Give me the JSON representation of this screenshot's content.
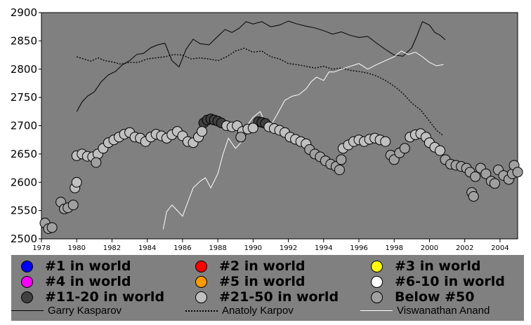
{
  "chart_data": {
    "type": "scatter",
    "title": "",
    "xlabel": "",
    "ylabel": "",
    "xlim": [
      1978,
      2005
    ],
    "ylim": [
      2500,
      2900
    ],
    "xticks": [
      "1978",
      "1980",
      "1982",
      "1984",
      "1986",
      "1988",
      "1990",
      "1992",
      "1994",
      "1996",
      "1998",
      "2000",
      "2002",
      "2004"
    ],
    "yticks": [
      "2500",
      "2550",
      "2600",
      "2650",
      "2700",
      "2750",
      "2800",
      "2850",
      "2900"
    ],
    "grid": false,
    "legend_position": "bottom",
    "plot_background": "#808080",
    "colors": {
      "rank_1": "#0000ff",
      "rank_2": "#ff0000",
      "rank_3": "#ffff00",
      "rank_4": "#ff00ff",
      "rank_5": "#ff9900",
      "rank_6_10": "#ffffff",
      "rank_11_20": "#404040",
      "rank_21_50": "#c0c0c0",
      "below_50": "#a0a0a0"
    },
    "legend": {
      "markers": [
        {
          "label": "#1 in world",
          "color_key": "rank_1"
        },
        {
          "label": "#2 in world",
          "color_key": "rank_2"
        },
        {
          "label": "#3 in world",
          "color_key": "rank_3"
        },
        {
          "label": "#4 in world",
          "color_key": "rank_4"
        },
        {
          "label": "#5 in world",
          "color_key": "rank_5"
        },
        {
          "label": "#6-10 in world",
          "color_key": "rank_6_10"
        },
        {
          "label": "#11-20 in world",
          "color_key": "rank_11_20"
        },
        {
          "label": "#21-50 in world",
          "color_key": "rank_21_50"
        },
        {
          "label": "Below #50",
          "color_key": "below_50"
        }
      ],
      "lines": [
        {
          "label": "Garry Kasparov",
          "style": "solid",
          "color": "#000000"
        },
        {
          "label": "Anatoly Karpov",
          "style": "dotted",
          "color": "#000000"
        },
        {
          "label": "Viswanathan Anand",
          "style": "solid",
          "color": "#ffffff"
        }
      ]
    },
    "series": [
      {
        "name": "Garry Kasparov",
        "kind": "line",
        "style": "solid",
        "color": "#000000",
        "points": [
          [
            1980.0,
            2725
          ],
          [
            1980.3,
            2742
          ],
          [
            1980.6,
            2752
          ],
          [
            1981.0,
            2760
          ],
          [
            1981.4,
            2778
          ],
          [
            1981.8,
            2790
          ],
          [
            1982.2,
            2796
          ],
          [
            1982.6,
            2808
          ],
          [
            1983.0,
            2815
          ],
          [
            1983.4,
            2826
          ],
          [
            1983.8,
            2828
          ],
          [
            1984.2,
            2838
          ],
          [
            1984.6,
            2843
          ],
          [
            1985.0,
            2846
          ],
          [
            1985.4,
            2815
          ],
          [
            1985.8,
            2804
          ],
          [
            1986.2,
            2835
          ],
          [
            1986.6,
            2853
          ],
          [
            1987.0,
            2845
          ],
          [
            1987.5,
            2843
          ],
          [
            1988.0,
            2858
          ],
          [
            1988.4,
            2870
          ],
          [
            1988.8,
            2865
          ],
          [
            1989.2,
            2872
          ],
          [
            1989.6,
            2884
          ],
          [
            1990.0,
            2880
          ],
          [
            1990.5,
            2884
          ],
          [
            1991.0,
            2875
          ],
          [
            1991.5,
            2878
          ],
          [
            1992.0,
            2885
          ],
          [
            1992.5,
            2880
          ],
          [
            1993.0,
            2876
          ],
          [
            1993.5,
            2873
          ],
          [
            1994.0,
            2868
          ],
          [
            1994.5,
            2862
          ],
          [
            1995.0,
            2866
          ],
          [
            1995.5,
            2860
          ],
          [
            1996.0,
            2856
          ],
          [
            1996.5,
            2858
          ],
          [
            1997.0,
            2846
          ],
          [
            1997.5,
            2835
          ],
          [
            1998.0,
            2825
          ],
          [
            1998.5,
            2823
          ],
          [
            1999.0,
            2838
          ],
          [
            1999.3,
            2860
          ],
          [
            1999.6,
            2884
          ],
          [
            2000.0,
            2878
          ],
          [
            2000.3,
            2865
          ],
          [
            2000.6,
            2860
          ],
          [
            2000.9,
            2852
          ]
        ]
      },
      {
        "name": "Anatoly Karpov",
        "kind": "line",
        "style": "dotted",
        "color": "#000000",
        "points": [
          [
            1980.0,
            2822
          ],
          [
            1980.4,
            2818
          ],
          [
            1980.8,
            2814
          ],
          [
            1981.2,
            2820
          ],
          [
            1981.6,
            2815
          ],
          [
            1982.0,
            2813
          ],
          [
            1982.5,
            2809
          ],
          [
            1983.0,
            2812
          ],
          [
            1983.5,
            2812
          ],
          [
            1984.0,
            2818
          ],
          [
            1984.5,
            2820
          ],
          [
            1985.0,
            2822
          ],
          [
            1985.5,
            2826
          ],
          [
            1986.0,
            2825
          ],
          [
            1986.5,
            2818
          ],
          [
            1987.0,
            2820
          ],
          [
            1987.5,
            2818
          ],
          [
            1988.0,
            2815
          ],
          [
            1988.5,
            2822
          ],
          [
            1989.0,
            2832
          ],
          [
            1989.5,
            2837
          ],
          [
            1990.0,
            2830
          ],
          [
            1990.5,
            2832
          ],
          [
            1991.0,
            2822
          ],
          [
            1991.5,
            2818
          ],
          [
            1992.0,
            2810
          ],
          [
            1992.5,
            2808
          ],
          [
            1993.0,
            2805
          ],
          [
            1993.5,
            2802
          ],
          [
            1994.0,
            2805
          ],
          [
            1994.5,
            2800
          ],
          [
            1995.0,
            2802
          ],
          [
            1995.5,
            2798
          ],
          [
            1996.0,
            2796
          ],
          [
            1996.5,
            2793
          ],
          [
            1997.0,
            2788
          ],
          [
            1997.5,
            2780
          ],
          [
            1998.0,
            2770
          ],
          [
            1998.5,
            2757
          ],
          [
            1999.0,
            2740
          ],
          [
            1999.5,
            2728
          ],
          [
            2000.0,
            2708
          ],
          [
            2000.4,
            2692
          ],
          [
            2000.8,
            2682
          ]
        ]
      },
      {
        "name": "Viswanathan Anand",
        "kind": "line",
        "style": "solid",
        "color": "#ffffff",
        "points": [
          [
            1984.9,
            2517
          ],
          [
            1985.1,
            2548
          ],
          [
            1985.4,
            2560
          ],
          [
            1985.7,
            2550
          ],
          [
            1986.0,
            2540
          ],
          [
            1986.3,
            2565
          ],
          [
            1986.6,
            2590
          ],
          [
            1987.0,
            2602
          ],
          [
            1987.3,
            2608
          ],
          [
            1987.6,
            2590
          ],
          [
            1988.0,
            2615
          ],
          [
            1988.3,
            2650
          ],
          [
            1988.6,
            2678
          ],
          [
            1989.0,
            2660
          ],
          [
            1989.3,
            2670
          ],
          [
            1989.6,
            2698
          ],
          [
            1990.0,
            2715
          ],
          [
            1990.4,
            2725
          ],
          [
            1990.7,
            2705
          ],
          [
            1991.0,
            2700
          ],
          [
            1991.4,
            2722
          ],
          [
            1991.8,
            2745
          ],
          [
            1992.2,
            2752
          ],
          [
            1992.6,
            2755
          ],
          [
            1993.0,
            2765
          ],
          [
            1993.3,
            2778
          ],
          [
            1993.6,
            2786
          ],
          [
            1994.0,
            2780
          ],
          [
            1994.3,
            2795
          ],
          [
            1994.6,
            2795
          ],
          [
            1995.0,
            2800
          ],
          [
            1995.5,
            2805
          ],
          [
            1996.0,
            2810
          ],
          [
            1996.5,
            2800
          ],
          [
            1997.0,
            2808
          ],
          [
            1997.5,
            2815
          ],
          [
            1998.0,
            2822
          ],
          [
            1998.4,
            2832
          ],
          [
            1998.8,
            2826
          ],
          [
            1999.2,
            2830
          ],
          [
            1999.6,
            2822
          ],
          [
            2000.0,
            2812
          ],
          [
            2000.4,
            2806
          ],
          [
            2000.8,
            2808
          ]
        ]
      },
      {
        "name": "#11-20 in world",
        "kind": "markers",
        "color_key": "rank_11_20",
        "points": [
          [
            1987.2,
            2705
          ],
          [
            1987.4,
            2710
          ],
          [
            1987.6,
            2712
          ],
          [
            1987.8,
            2710
          ],
          [
            1988.0,
            2708
          ],
          [
            1988.2,
            2705
          ],
          [
            1990.3,
            2707
          ],
          [
            1990.5,
            2706
          ],
          [
            1990.7,
            2704
          ]
        ]
      },
      {
        "name": "#21-50 in world",
        "kind": "markers",
        "color_key": "rank_21_50",
        "points": [
          [
            1979.9,
            2590
          ],
          [
            1980.0,
            2600
          ],
          [
            1980.0,
            2647
          ],
          [
            1980.3,
            2650
          ],
          [
            1980.6,
            2646
          ],
          [
            1980.9,
            2645
          ],
          [
            1981.2,
            2650
          ],
          [
            1981.5,
            2660
          ],
          [
            1981.8,
            2670
          ],
          [
            1982.1,
            2675
          ],
          [
            1982.4,
            2680
          ],
          [
            1982.7,
            2685
          ],
          [
            1983.0,
            2688
          ],
          [
            1983.3,
            2680
          ],
          [
            1983.6,
            2678
          ],
          [
            1983.9,
            2672
          ],
          [
            1984.2,
            2680
          ],
          [
            1984.5,
            2685
          ],
          [
            1984.8,
            2682
          ],
          [
            1985.1,
            2678
          ],
          [
            1985.4,
            2684
          ],
          [
            1985.7,
            2690
          ],
          [
            1986.0,
            2682
          ],
          [
            1986.3,
            2672
          ],
          [
            1986.6,
            2670
          ],
          [
            1986.9,
            2680
          ],
          [
            1987.1,
            2690
          ],
          [
            1988.5,
            2700
          ],
          [
            1988.8,
            2698
          ],
          [
            1989.1,
            2700
          ],
          [
            1989.4,
            2690
          ],
          [
            1989.7,
            2694
          ],
          [
            1990.0,
            2696
          ],
          [
            1990.9,
            2698
          ],
          [
            1991.2,
            2695
          ],
          [
            1991.5,
            2692
          ],
          [
            1991.8,
            2688
          ],
          [
            1992.1,
            2680
          ],
          [
            1992.4,
            2676
          ],
          [
            1992.7,
            2672
          ],
          [
            1993.0,
            2668
          ],
          [
            1995.1,
            2660
          ],
          [
            1995.4,
            2666
          ],
          [
            1995.7,
            2672
          ],
          [
            1996.0,
            2675
          ],
          [
            1996.3,
            2672
          ],
          [
            1996.6,
            2676
          ],
          [
            1996.9,
            2678
          ],
          [
            1997.2,
            2675
          ],
          [
            1997.5,
            2672
          ],
          [
            1998.9,
            2680
          ],
          [
            1999.2,
            2684
          ],
          [
            1999.5,
            2686
          ],
          [
            1999.8,
            2680
          ],
          [
            2000.0,
            2670
          ],
          [
            2000.3,
            2662
          ],
          [
            2000.6,
            2656
          ]
        ]
      },
      {
        "name": "Below #50",
        "kind": "markers",
        "color_key": "below_50",
        "points": [
          [
            1978.2,
            2528
          ],
          [
            1978.4,
            2518
          ],
          [
            1978.6,
            2520
          ],
          [
            1979.1,
            2565
          ],
          [
            1979.3,
            2553
          ],
          [
            1979.5,
            2555
          ],
          [
            1979.8,
            2560
          ],
          [
            1981.1,
            2635
          ],
          [
            1989.3,
            2680
          ],
          [
            1993.2,
            2658
          ],
          [
            1993.5,
            2650
          ],
          [
            1993.8,
            2645
          ],
          [
            1994.1,
            2638
          ],
          [
            1994.4,
            2632
          ],
          [
            1994.7,
            2628
          ],
          [
            1994.9,
            2622
          ],
          [
            1995.0,
            2640
          ],
          [
            1997.8,
            2648
          ],
          [
            1998.0,
            2640
          ],
          [
            1998.3,
            2652
          ],
          [
            1998.6,
            2660
          ],
          [
            2000.9,
            2640
          ],
          [
            2001.2,
            2632
          ],
          [
            2001.5,
            2630
          ],
          [
            2001.8,
            2628
          ],
          [
            2002.1,
            2625
          ],
          [
            2002.3,
            2618
          ],
          [
            2002.4,
            2582
          ],
          [
            2002.5,
            2575
          ],
          [
            2002.6,
            2610
          ],
          [
            2002.9,
            2625
          ],
          [
            2003.2,
            2615
          ],
          [
            2003.5,
            2602
          ],
          [
            2003.7,
            2598
          ],
          [
            2003.9,
            2622
          ],
          [
            2004.2,
            2612
          ],
          [
            2004.5,
            2605
          ],
          [
            2004.7,
            2615
          ],
          [
            2004.8,
            2630
          ],
          [
            2005.0,
            2618
          ]
        ]
      }
    ]
  }
}
